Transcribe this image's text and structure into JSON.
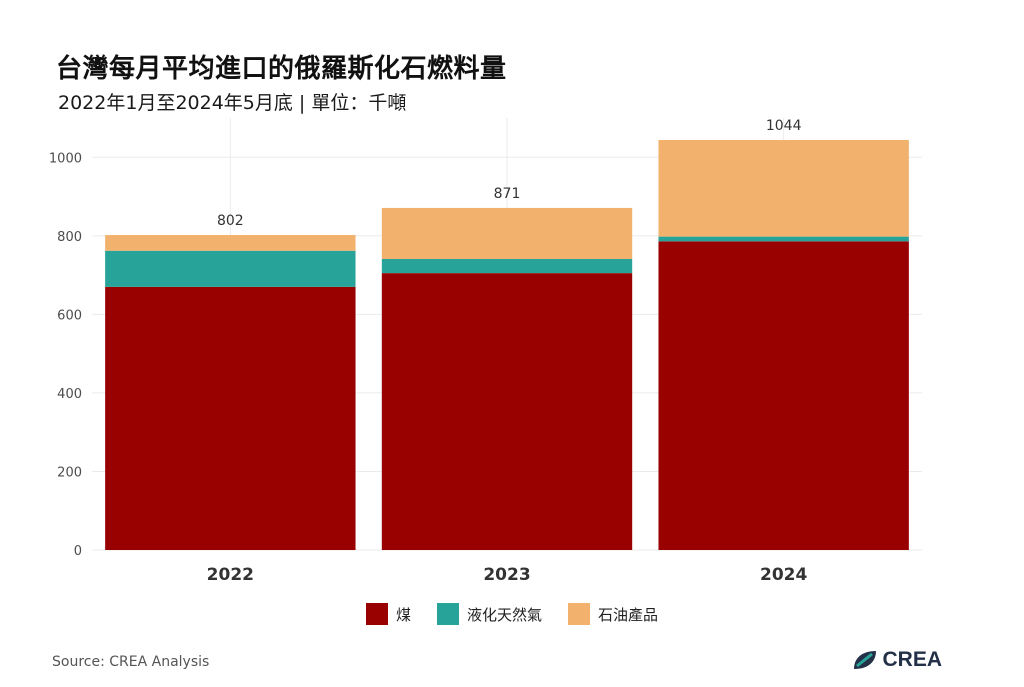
{
  "chart_data": {
    "type": "bar",
    "stacked": true,
    "title": "台灣每月平均進口的俄羅斯化石燃料量",
    "subtitle": "2022年1月至2024年5月底 | 單位：千噸",
    "categories": [
      "2022",
      "2023",
      "2024"
    ],
    "series": [
      {
        "name": "煤",
        "color": "#990000",
        "values": [
          670,
          705,
          786
        ]
      },
      {
        "name": "液化天然氣",
        "color": "#27a39a",
        "values": [
          92,
          36,
          12
        ]
      },
      {
        "name": "石油產品",
        "color": "#f2b26e",
        "values": [
          40,
          130,
          246
        ]
      }
    ],
    "totals": [
      "802",
      "871",
      "1044"
    ],
    "yticks": [
      "0",
      "200",
      "400",
      "600",
      "800",
      "1000"
    ],
    "ylim": [
      0,
      1100
    ],
    "grid": true,
    "legend_position": "bottom"
  },
  "footer": {
    "source": "Source: CREA Analysis",
    "brand": "CREA"
  },
  "colors": {
    "grid": "#ebebeb",
    "tick_text": "#4d4d4d"
  }
}
